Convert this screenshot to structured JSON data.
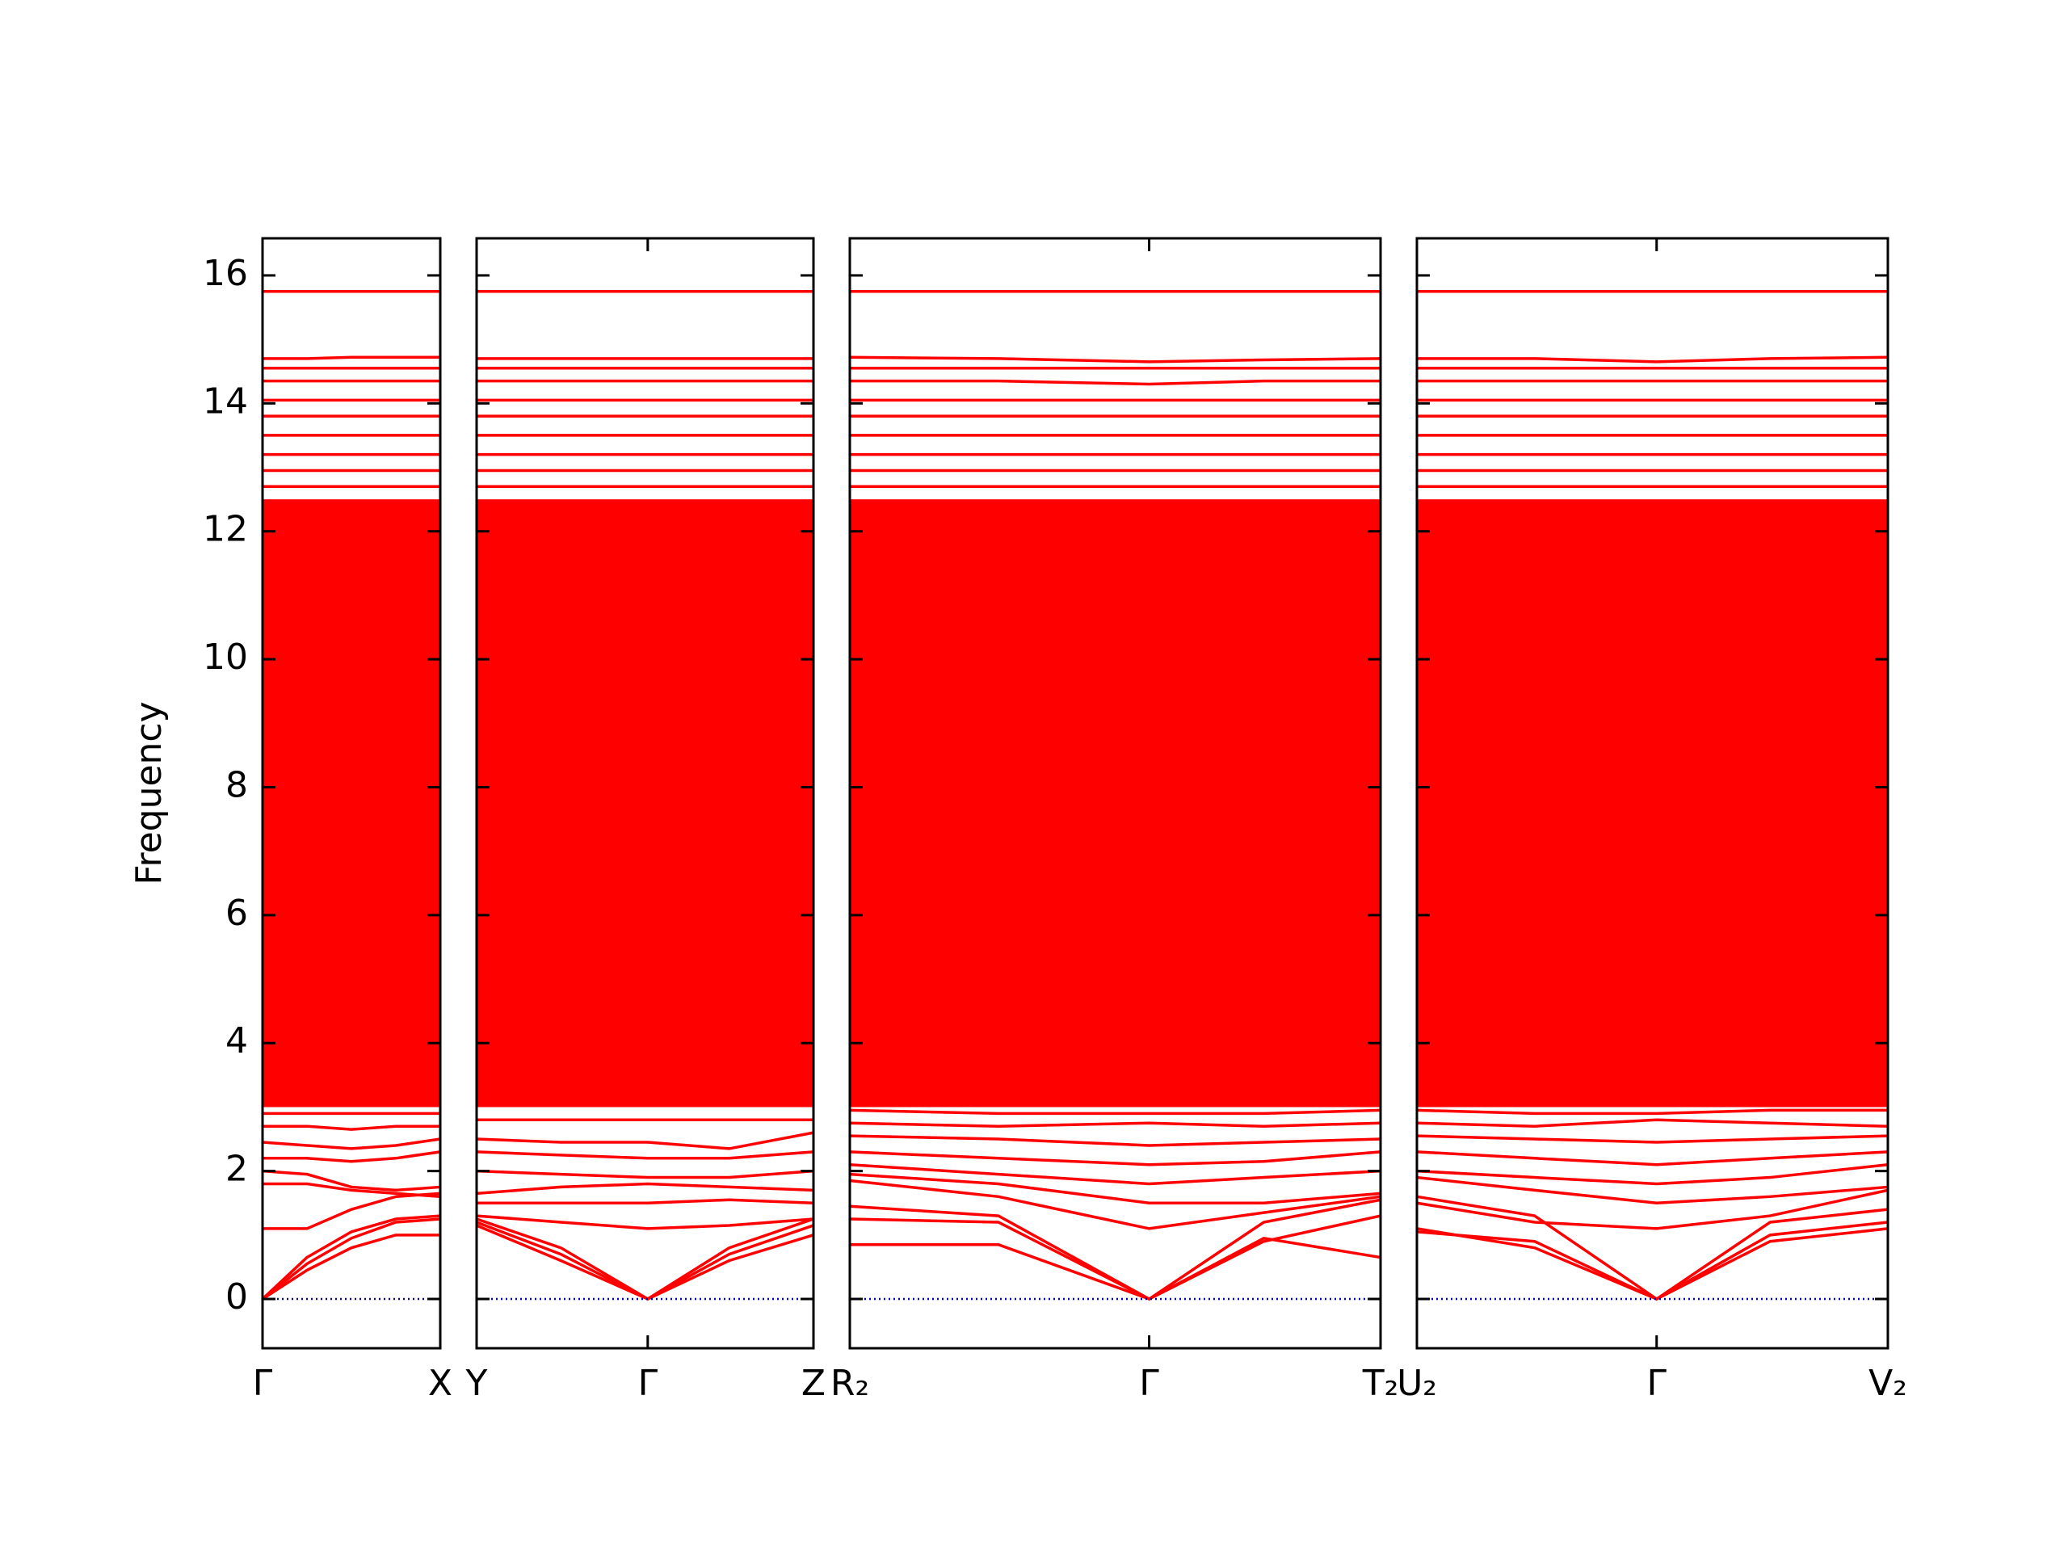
{
  "chart_data": [
    {
      "type": "line",
      "ylabel": "Frequency",
      "yticklabels": true,
      "color": "#ff0000",
      "ylim": [
        -0.77,
        16.58
      ],
      "yticks": [
        0,
        2,
        4,
        6,
        8,
        10,
        12,
        14,
        16
      ],
      "xlim": [
        0,
        1
      ],
      "xticks": [
        {
          "value": 0,
          "label": "Γ"
        },
        {
          "value": 1,
          "label": "X"
        }
      ],
      "zero_line": {
        "value": 0,
        "color": "#0000aa"
      },
      "x": [
        0,
        0.25,
        0.5,
        0.75,
        1
      ],
      "areas": [
        {
          "lower": [
            3.0,
            3.0,
            3.0,
            3.0,
            3.0
          ],
          "upper": [
            12.5,
            12.5,
            12.5,
            12.5,
            12.5
          ]
        }
      ],
      "series": [
        {
          "values": [
            0,
            0.45,
            0.8,
            1.0,
            1.0
          ]
        },
        {
          "values": [
            0,
            0.55,
            0.95,
            1.2,
            1.25
          ]
        },
        {
          "values": [
            0,
            0.65,
            1.05,
            1.25,
            1.3
          ]
        },
        {
          "values": [
            1.1,
            1.1,
            1.4,
            1.6,
            1.65
          ]
        },
        {
          "values": [
            1.8,
            1.8,
            1.7,
            1.65,
            1.6
          ]
        },
        {
          "values": [
            2.0,
            1.95,
            1.75,
            1.7,
            1.75
          ]
        },
        {
          "values": [
            2.2,
            2.2,
            2.15,
            2.2,
            2.3
          ]
        },
        {
          "values": [
            2.45,
            2.4,
            2.35,
            2.4,
            2.5
          ]
        },
        {
          "values": [
            2.7,
            2.7,
            2.65,
            2.7,
            2.7
          ]
        },
        {
          "values": [
            2.9,
            2.9,
            2.9,
            2.9,
            2.9
          ]
        },
        {
          "values": [
            12.7,
            12.7,
            12.7,
            12.7,
            12.7
          ]
        },
        {
          "values": [
            12.95,
            12.95,
            12.95,
            12.95,
            12.95
          ]
        },
        {
          "values": [
            13.2,
            13.2,
            13.2,
            13.2,
            13.2
          ]
        },
        {
          "values": [
            13.5,
            13.5,
            13.5,
            13.5,
            13.5
          ]
        },
        {
          "values": [
            13.8,
            13.8,
            13.8,
            13.8,
            13.8
          ]
        },
        {
          "values": [
            14.05,
            14.05,
            14.05,
            14.05,
            14.05
          ]
        },
        {
          "values": [
            14.35,
            14.35,
            14.35,
            14.35,
            14.35
          ]
        },
        {
          "values": [
            14.55,
            14.55,
            14.55,
            14.55,
            14.55
          ]
        },
        {
          "values": [
            14.7,
            14.7,
            14.72,
            14.72,
            14.72
          ]
        },
        {
          "values": [
            15.75,
            15.75,
            15.75,
            15.75,
            15.75
          ]
        }
      ]
    },
    {
      "type": "line",
      "yticklabels": false,
      "color": "#ff0000",
      "ylim": [
        -0.77,
        16.58
      ],
      "yticks": [
        0,
        2,
        4,
        6,
        8,
        10,
        12,
        14,
        16
      ],
      "xlim": [
        0,
        1
      ],
      "xticks": [
        {
          "value": 0,
          "label": "Y"
        },
        {
          "value": 0.508,
          "label": "Γ"
        },
        {
          "value": 1,
          "label": "Z"
        }
      ],
      "zero_line": {
        "value": 0,
        "color": "#0000aa"
      },
      "x": [
        0,
        0.25,
        0.508,
        0.75,
        1
      ],
      "areas": [
        {
          "lower": [
            3.0,
            3.0,
            3.0,
            3.0,
            3.0
          ],
          "upper": [
            12.5,
            12.5,
            12.5,
            12.5,
            12.5
          ]
        }
      ],
      "series": [
        {
          "values": [
            1.2,
            0.7,
            0,
            0.6,
            1.0
          ]
        },
        {
          "values": [
            1.25,
            0.8,
            0,
            0.7,
            1.15
          ]
        },
        {
          "values": [
            1.15,
            0.6,
            0,
            0.8,
            1.25
          ]
        },
        {
          "values": [
            1.3,
            1.2,
            1.1,
            1.15,
            1.25
          ]
        },
        {
          "values": [
            1.5,
            1.5,
            1.5,
            1.55,
            1.5
          ]
        },
        {
          "values": [
            1.65,
            1.75,
            1.8,
            1.75,
            1.7
          ]
        },
        {
          "values": [
            2.0,
            1.95,
            1.9,
            1.9,
            2.0
          ]
        },
        {
          "values": [
            2.3,
            2.25,
            2.2,
            2.2,
            2.3
          ]
        },
        {
          "values": [
            2.5,
            2.45,
            2.45,
            2.35,
            2.6
          ]
        },
        {
          "values": [
            2.8,
            2.8,
            2.8,
            2.8,
            2.8
          ]
        },
        {
          "values": [
            12.7,
            12.7,
            12.7,
            12.7,
            12.7
          ]
        },
        {
          "values": [
            12.95,
            12.95,
            12.95,
            12.95,
            12.95
          ]
        },
        {
          "values": [
            13.2,
            13.2,
            13.2,
            13.2,
            13.2
          ]
        },
        {
          "values": [
            13.5,
            13.5,
            13.5,
            13.5,
            13.5
          ]
        },
        {
          "values": [
            13.8,
            13.8,
            13.8,
            13.8,
            13.8
          ]
        },
        {
          "values": [
            14.05,
            14.05,
            14.05,
            14.05,
            14.05
          ]
        },
        {
          "values": [
            14.35,
            14.35,
            14.35,
            14.35,
            14.35
          ]
        },
        {
          "values": [
            14.55,
            14.55,
            14.55,
            14.55,
            14.55
          ]
        },
        {
          "values": [
            14.7,
            14.7,
            14.7,
            14.7,
            14.7
          ]
        },
        {
          "values": [
            15.75,
            15.75,
            15.75,
            15.75,
            15.75
          ]
        }
      ]
    },
    {
      "type": "line",
      "yticklabels": false,
      "color": "#ff0000",
      "ylim": [
        -0.77,
        16.58
      ],
      "yticks": [
        0,
        2,
        4,
        6,
        8,
        10,
        12,
        14,
        16
      ],
      "xlim": [
        0,
        1
      ],
      "xticks": [
        {
          "value": 0,
          "label": "R₂"
        },
        {
          "value": 0.564,
          "label": "Γ"
        },
        {
          "value": 1,
          "label": "T₂"
        }
      ],
      "zero_line": {
        "value": 0,
        "color": "#0000aa"
      },
      "x": [
        0,
        0.28,
        0.564,
        0.78,
        1
      ],
      "areas": [
        {
          "lower": [
            3.0,
            3.0,
            3.0,
            3.0,
            3.0
          ],
          "upper": [
            12.5,
            12.5,
            12.5,
            12.5,
            12.5
          ]
        }
      ],
      "series": [
        {
          "values": [
            0.85,
            0.85,
            0,
            0.95,
            0.65
          ]
        },
        {
          "values": [
            1.25,
            1.2,
            0,
            0.9,
            1.3
          ]
        },
        {
          "values": [
            1.45,
            1.3,
            0,
            1.2,
            1.55
          ]
        },
        {
          "values": [
            1.85,
            1.6,
            1.1,
            1.35,
            1.6
          ]
        },
        {
          "values": [
            1.95,
            1.8,
            1.5,
            1.5,
            1.65
          ]
        },
        {
          "values": [
            2.1,
            1.95,
            1.8,
            1.9,
            2.0
          ]
        },
        {
          "values": [
            2.3,
            2.2,
            2.1,
            2.15,
            2.3
          ]
        },
        {
          "values": [
            2.55,
            2.5,
            2.4,
            2.45,
            2.5
          ]
        },
        {
          "values": [
            2.75,
            2.7,
            2.75,
            2.7,
            2.75
          ]
        },
        {
          "values": [
            2.95,
            2.9,
            2.9,
            2.9,
            2.95
          ]
        },
        {
          "values": [
            12.7,
            12.7,
            12.7,
            12.7,
            12.7
          ]
        },
        {
          "values": [
            12.95,
            12.95,
            12.95,
            12.95,
            12.95
          ]
        },
        {
          "values": [
            13.2,
            13.2,
            13.2,
            13.2,
            13.2
          ]
        },
        {
          "values": [
            13.5,
            13.5,
            13.5,
            13.5,
            13.5
          ]
        },
        {
          "values": [
            13.8,
            13.8,
            13.8,
            13.8,
            13.8
          ]
        },
        {
          "values": [
            14.05,
            14.05,
            14.05,
            14.05,
            14.05
          ]
        },
        {
          "values": [
            14.35,
            14.35,
            14.3,
            14.35,
            14.35
          ]
        },
        {
          "values": [
            14.55,
            14.55,
            14.55,
            14.55,
            14.55
          ]
        },
        {
          "values": [
            14.72,
            14.7,
            14.65,
            14.68,
            14.7
          ]
        },
        {
          "values": [
            15.75,
            15.75,
            15.75,
            15.75,
            15.75
          ]
        }
      ]
    },
    {
      "type": "line",
      "yticklabels": false,
      "color": "#ff0000",
      "ylim": [
        -0.77,
        16.58
      ],
      "yticks": [
        0,
        2,
        4,
        6,
        8,
        10,
        12,
        14,
        16
      ],
      "xlim": [
        0,
        1
      ],
      "xticks": [
        {
          "value": 0,
          "label": "U₂"
        },
        {
          "value": 0.509,
          "label": "Γ"
        },
        {
          "value": 1,
          "label": "V₂"
        }
      ],
      "zero_line": {
        "value": 0,
        "color": "#0000aa"
      },
      "x": [
        0,
        0.25,
        0.509,
        0.75,
        1
      ],
      "areas": [
        {
          "lower": [
            3.0,
            3.0,
            3.0,
            3.0,
            3.0
          ],
          "upper": [
            12.5,
            12.5,
            12.5,
            12.5,
            12.5
          ]
        }
      ],
      "series": [
        {
          "values": [
            1.05,
            0.9,
            0,
            0.9,
            1.1
          ]
        },
        {
          "values": [
            1.1,
            0.8,
            0,
            1.0,
            1.2
          ]
        },
        {
          "values": [
            1.6,
            1.3,
            0,
            1.2,
            1.4
          ]
        },
        {
          "values": [
            1.5,
            1.2,
            1.1,
            1.3,
            1.7
          ]
        },
        {
          "values": [
            1.9,
            1.7,
            1.5,
            1.6,
            1.75
          ]
        },
        {
          "values": [
            2.0,
            1.9,
            1.8,
            1.9,
            2.1
          ]
        },
        {
          "values": [
            2.3,
            2.2,
            2.1,
            2.2,
            2.3
          ]
        },
        {
          "values": [
            2.55,
            2.5,
            2.45,
            2.5,
            2.55
          ]
        },
        {
          "values": [
            2.75,
            2.7,
            2.8,
            2.75,
            2.7
          ]
        },
        {
          "values": [
            2.95,
            2.9,
            2.9,
            2.95,
            2.95
          ]
        },
        {
          "values": [
            12.7,
            12.7,
            12.7,
            12.7,
            12.7
          ]
        },
        {
          "values": [
            12.95,
            12.95,
            12.95,
            12.95,
            12.95
          ]
        },
        {
          "values": [
            13.2,
            13.2,
            13.2,
            13.2,
            13.2
          ]
        },
        {
          "values": [
            13.5,
            13.5,
            13.5,
            13.5,
            13.5
          ]
        },
        {
          "values": [
            13.8,
            13.8,
            13.8,
            13.8,
            13.8
          ]
        },
        {
          "values": [
            14.05,
            14.05,
            14.05,
            14.05,
            14.05
          ]
        },
        {
          "values": [
            14.35,
            14.35,
            14.35,
            14.35,
            14.35
          ]
        },
        {
          "values": [
            14.55,
            14.55,
            14.55,
            14.55,
            14.55
          ]
        },
        {
          "values": [
            14.7,
            14.7,
            14.65,
            14.7,
            14.72
          ]
        },
        {
          "values": [
            15.75,
            15.75,
            15.75,
            15.75,
            15.75
          ]
        }
      ]
    }
  ]
}
